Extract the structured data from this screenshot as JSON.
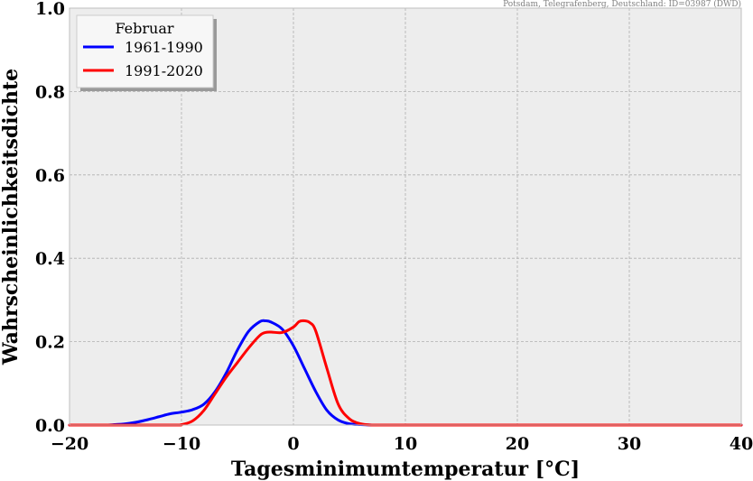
{
  "chart_data": {
    "type": "line",
    "source_note": "Potsdam, Telegrafenberg, Deutschland: ID=03987 (DWD)",
    "xlabel": "Tagesminimumtemperatur [°C]",
    "ylabel": "Wahrscheinlichkeitsdichte",
    "xlim": [
      -20,
      40
    ],
    "ylim": [
      0,
      1
    ],
    "xticks": [
      -20,
      -10,
      0,
      10,
      20,
      30,
      40
    ],
    "xtick_labels": [
      "−20",
      "−10",
      "0",
      "10",
      "20",
      "30",
      "40"
    ],
    "yticks": [
      0,
      0.2,
      0.4,
      0.6,
      0.8,
      1.0
    ],
    "ytick_labels": [
      "0.0",
      "0.2",
      "0.4",
      "0.6",
      "0.8",
      "1.0"
    ],
    "grid": true,
    "legend": {
      "title": "Februar",
      "placement": "top-left"
    },
    "series": [
      {
        "name": "1961-1990",
        "color": "#0000ff",
        "x": [
          -20,
          -17,
          -16,
          -15,
          -14,
          -13,
          -12,
          -11,
          -10,
          -9,
          -8,
          -7,
          -6,
          -5,
          -4,
          -3,
          -2.5,
          -2,
          -1,
          0,
          1,
          2,
          3,
          4,
          5,
          6,
          7,
          8,
          10,
          20,
          30,
          40
        ],
        "y": [
          0,
          0,
          0.001,
          0.003,
          0.007,
          0.013,
          0.02,
          0.027,
          0.031,
          0.037,
          0.05,
          0.08,
          0.125,
          0.18,
          0.225,
          0.248,
          0.25,
          0.247,
          0.23,
          0.19,
          0.135,
          0.08,
          0.035,
          0.012,
          0.003,
          0.001,
          0,
          0,
          0,
          0,
          0,
          0
        ]
      },
      {
        "name": "1991-2020",
        "color": "#ff0000",
        "x": [
          -20,
          -11,
          -10,
          -9,
          -8,
          -7,
          -6,
          -5,
          -4,
          -3,
          -2.5,
          -2,
          -1,
          0,
          0.5,
          1,
          1.5,
          2,
          3,
          4,
          5,
          6,
          7,
          8,
          10,
          20,
          30,
          40
        ],
        "y": [
          0,
          0,
          0.001,
          0.01,
          0.035,
          0.075,
          0.115,
          0.15,
          0.185,
          0.215,
          0.222,
          0.223,
          0.222,
          0.235,
          0.248,
          0.25,
          0.245,
          0.225,
          0.135,
          0.05,
          0.015,
          0.003,
          0,
          0,
          0,
          0,
          0,
          0
        ]
      }
    ]
  }
}
